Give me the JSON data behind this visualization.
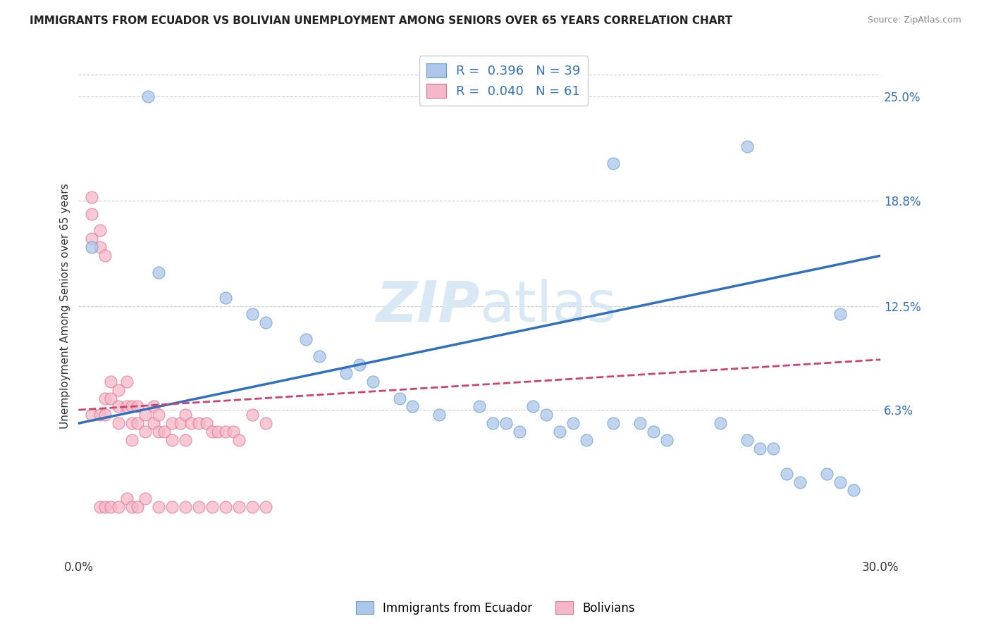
{
  "title": "IMMIGRANTS FROM ECUADOR VS BOLIVIAN UNEMPLOYMENT AMONG SENIORS OVER 65 YEARS CORRELATION CHART",
  "source": "Source: ZipAtlas.com",
  "ylabel": "Unemployment Among Seniors over 65 years",
  "xlim": [
    0.0,
    0.3
  ],
  "ylim": [
    -0.025,
    0.275
  ],
  "right_yticks": [
    0.063,
    0.125,
    0.188,
    0.25
  ],
  "right_yticklabels": [
    "6.3%",
    "12.5%",
    "18.8%",
    "25.0%"
  ],
  "xticks": [
    0.0,
    0.3
  ],
  "xticklabels": [
    "0.0%",
    "30.0%"
  ],
  "legend_R1": "R =  0.396",
  "legend_N1": "N = 39",
  "legend_R2": "R =  0.040",
  "legend_N2": "N = 61",
  "series1_label": "Immigrants from Ecuador",
  "series2_label": "Bolivians",
  "series1_color": "#aec6e8",
  "series2_color": "#f4b8c8",
  "series1_edge": "#5a9fd4",
  "series2_edge": "#e07090",
  "trend1_color": "#3070c0",
  "trend2_color": "#d04070",
  "watermark_color": "#d8e8f4",
  "background_color": "#ffffff",
  "grid_color": "#cccccc",
  "ecuador_x": [
    0.026,
    0.005,
    0.03,
    0.055,
    0.065,
    0.07,
    0.085,
    0.09,
    0.1,
    0.105,
    0.11,
    0.12,
    0.125,
    0.135,
    0.15,
    0.155,
    0.16,
    0.165,
    0.17,
    0.175,
    0.18,
    0.185,
    0.19,
    0.2,
    0.21,
    0.215,
    0.22,
    0.24,
    0.25,
    0.255,
    0.26,
    0.265,
    0.27,
    0.28,
    0.285,
    0.29,
    0.2,
    0.25,
    0.285
  ],
  "ecuador_y": [
    0.25,
    0.16,
    0.145,
    0.13,
    0.12,
    0.115,
    0.105,
    0.095,
    0.085,
    0.09,
    0.08,
    0.07,
    0.065,
    0.06,
    0.065,
    0.055,
    0.055,
    0.05,
    0.065,
    0.06,
    0.05,
    0.055,
    0.045,
    0.055,
    0.055,
    0.05,
    0.045,
    0.055,
    0.045,
    0.04,
    0.04,
    0.025,
    0.02,
    0.025,
    0.02,
    0.015,
    0.21,
    0.22,
    0.12
  ],
  "bolivia_x": [
    0.005,
    0.005,
    0.005,
    0.005,
    0.008,
    0.008,
    0.008,
    0.01,
    0.01,
    0.01,
    0.012,
    0.012,
    0.015,
    0.015,
    0.015,
    0.018,
    0.018,
    0.02,
    0.02,
    0.02,
    0.022,
    0.022,
    0.025,
    0.025,
    0.028,
    0.028,
    0.03,
    0.03,
    0.032,
    0.035,
    0.035,
    0.038,
    0.04,
    0.04,
    0.042,
    0.045,
    0.048,
    0.05,
    0.052,
    0.055,
    0.058,
    0.06,
    0.065,
    0.07,
    0.008,
    0.01,
    0.012,
    0.015,
    0.018,
    0.02,
    0.022,
    0.025,
    0.03,
    0.035,
    0.04,
    0.045,
    0.05,
    0.055,
    0.06,
    0.065,
    0.07
  ],
  "bolivia_y": [
    0.19,
    0.18,
    0.165,
    0.06,
    0.17,
    0.16,
    0.06,
    0.155,
    0.07,
    0.06,
    0.08,
    0.07,
    0.075,
    0.065,
    0.055,
    0.08,
    0.065,
    0.065,
    0.055,
    0.045,
    0.065,
    0.055,
    0.06,
    0.05,
    0.065,
    0.055,
    0.06,
    0.05,
    0.05,
    0.055,
    0.045,
    0.055,
    0.06,
    0.045,
    0.055,
    0.055,
    0.055,
    0.05,
    0.05,
    0.05,
    0.05,
    0.045,
    0.06,
    0.055,
    0.005,
    0.005,
    0.005,
    0.005,
    0.01,
    0.005,
    0.005,
    0.01,
    0.005,
    0.005,
    0.005,
    0.005,
    0.005,
    0.005,
    0.005,
    0.005,
    0.005
  ],
  "trend1_x0": 0.0,
  "trend1_y0": 0.055,
  "trend1_x1": 0.3,
  "trend1_y1": 0.155,
  "trend2_x0": 0.0,
  "trend2_y0": 0.063,
  "trend2_x1": 0.3,
  "trend2_y1": 0.093
}
